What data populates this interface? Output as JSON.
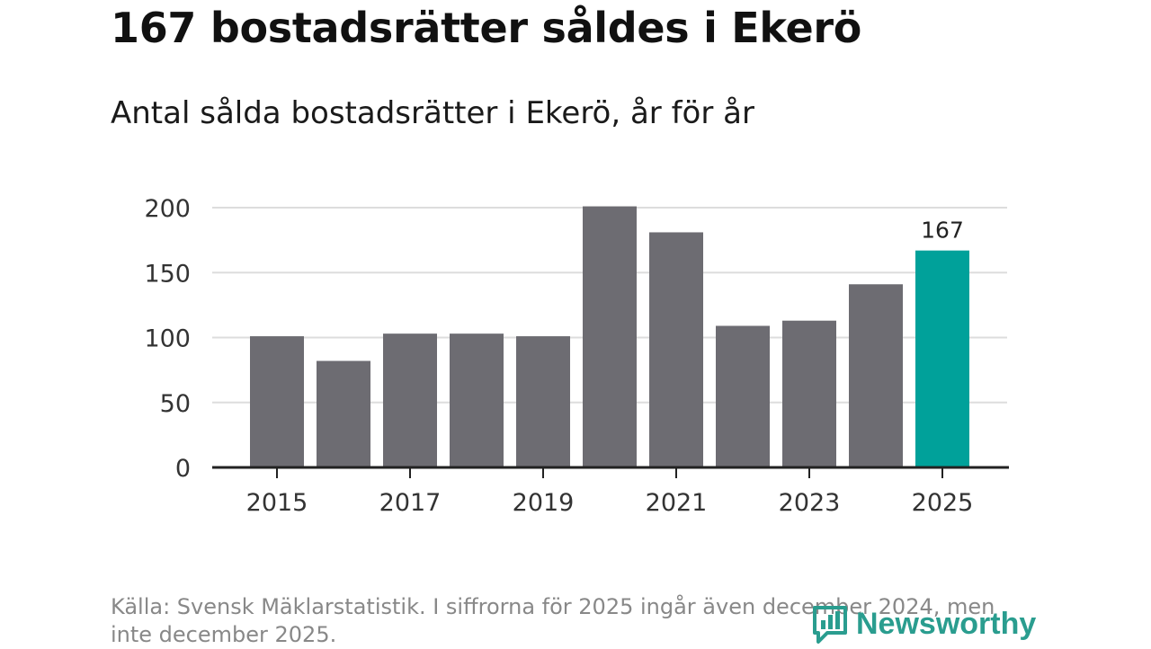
{
  "title": "167 bostadsrätter såldes i Ekerö",
  "subtitle": "Antal sålda bostadsrätter i Ekerö, år för år",
  "source": "Källa: Svensk Mäklarstatistik. I siffrorna för 2025 ingår även december 2024, men inte december 2025.",
  "brand": "Newsworthy",
  "colors": {
    "bar": "#6d6c72",
    "highlight": "#00a19a",
    "grid": "#dddddd",
    "axis": "#222222",
    "brand": "#2a9d8f"
  },
  "chart_data": {
    "type": "bar",
    "title": "167 bostadsrätter såldes i Ekerö",
    "subtitle": "Antal sålda bostadsrätter i Ekerö, år för år",
    "categories": [
      "2015",
      "2016",
      "2017",
      "2018",
      "2019",
      "2020",
      "2021",
      "2022",
      "2023",
      "2024",
      "2025"
    ],
    "values": [
      101,
      82,
      103,
      103,
      101,
      201,
      181,
      109,
      113,
      141,
      167
    ],
    "highlight_index": 10,
    "data_labels": [
      {
        "index": 10,
        "text": "167"
      }
    ],
    "x_tick_labels": [
      "2015",
      "2017",
      "2019",
      "2021",
      "2023",
      "2025"
    ],
    "y_ticks": [
      0,
      50,
      100,
      150,
      200
    ],
    "ylim": [
      0,
      200
    ],
    "xlabel": "",
    "ylabel": "",
    "grid": true
  }
}
